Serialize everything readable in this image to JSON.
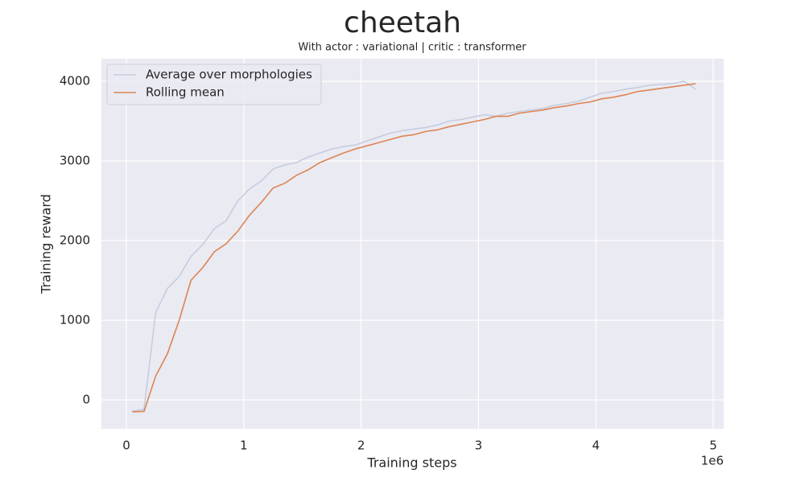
{
  "chart_data": {
    "type": "line",
    "title": "cheetah",
    "subtitle": "With actor : variational | critic : transformer",
    "xlabel": "Training steps",
    "ylabel": "Training reward",
    "x_offset_label": "1e6",
    "x": [
      0.05,
      0.15,
      0.25,
      0.35,
      0.45,
      0.55,
      0.65,
      0.75,
      0.85,
      0.95,
      1.05,
      1.15,
      1.25,
      1.35,
      1.45,
      1.55,
      1.65,
      1.75,
      1.85,
      1.95,
      2.05,
      2.15,
      2.25,
      2.35,
      2.45,
      2.55,
      2.65,
      2.75,
      2.85,
      2.95,
      3.05,
      3.15,
      3.25,
      3.35,
      3.45,
      3.55,
      3.65,
      3.75,
      3.85,
      3.95,
      4.05,
      4.15,
      4.25,
      4.35,
      4.45,
      4.55,
      4.65,
      4.75,
      4.85
    ],
    "series": [
      {
        "name": "Average over morphologies",
        "color": "#c4cde0",
        "values": [
          -140,
          -120,
          1100,
          1400,
          1550,
          1800,
          1950,
          2150,
          2250,
          2500,
          2650,
          2750,
          2900,
          2950,
          2980,
          3050,
          3100,
          3150,
          3180,
          3200,
          3250,
          3300,
          3350,
          3380,
          3400,
          3420,
          3450,
          3500,
          3520,
          3550,
          3580,
          3560,
          3600,
          3620,
          3640,
          3660,
          3700,
          3720,
          3750,
          3800,
          3850,
          3870,
          3900,
          3920,
          3950,
          3960,
          3970,
          4000,
          3900
        ]
      },
      {
        "name": "Rolling mean",
        "color": "#dd8452",
        "values": [
          -150,
          -145,
          300,
          580,
          1000,
          1500,
          1660,
          1860,
          1960,
          2120,
          2320,
          2480,
          2660,
          2720,
          2820,
          2890,
          2980,
          3040,
          3100,
          3150,
          3190,
          3230,
          3270,
          3310,
          3330,
          3370,
          3390,
          3430,
          3460,
          3490,
          3520,
          3560,
          3560,
          3600,
          3620,
          3640,
          3670,
          3690,
          3720,
          3740,
          3780,
          3800,
          3830,
          3870,
          3890,
          3910,
          3930,
          3950,
          3970
        ]
      }
    ],
    "xlim": [
      -0.2126,
      5.089
    ],
    "xticks": [
      0,
      1,
      2,
      3,
      4,
      5
    ],
    "ylim": [
      -364,
      4283
    ],
    "yticks": [
      0,
      1000,
      2000,
      3000,
      4000
    ],
    "grid": true,
    "legend": "upper left"
  }
}
